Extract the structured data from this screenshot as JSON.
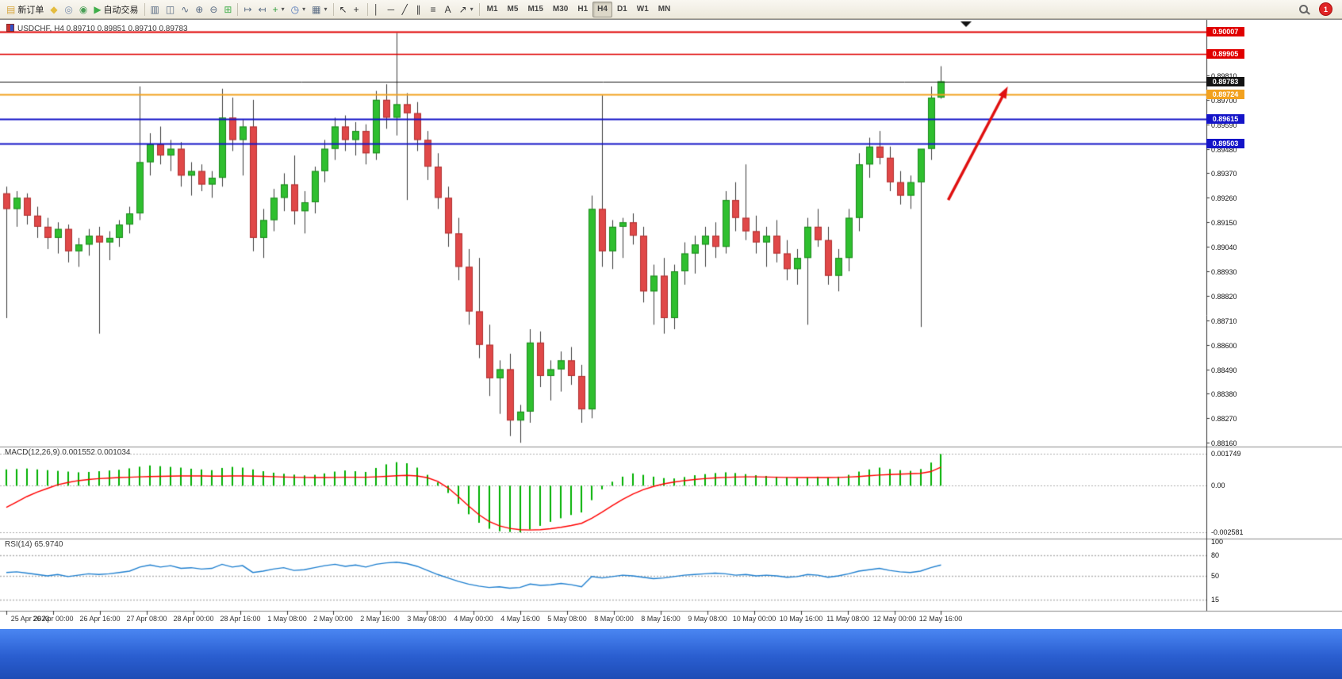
{
  "toolbar": {
    "notification_count": "1",
    "timeframes": [
      "M1",
      "M5",
      "M15",
      "M30",
      "H1",
      "H4",
      "D1",
      "W1",
      "MN"
    ],
    "active_timeframe": "H4",
    "icon_groups": [
      [
        {
          "name": "new-order",
          "glyph": "▤",
          "color": "#d7a73f",
          "label": "新订单"
        },
        {
          "name": "metaeditor",
          "glyph": "◆",
          "color": "#e4bc3e"
        },
        {
          "name": "history-center",
          "glyph": "◎",
          "color": "#7a8fae"
        },
        {
          "name": "global-search",
          "glyph": "◉",
          "color": "#4aa057"
        },
        {
          "name": "auto-trading",
          "glyph": "▶",
          "color": "#3fae4a",
          "label": "自动交易"
        }
      ],
      [
        {
          "name": "bar-chart",
          "glyph": "▥",
          "color": "#5a6c84"
        },
        {
          "name": "candlestick-chart",
          "glyph": "◫",
          "color": "#5a6c84"
        },
        {
          "name": "line-chart",
          "glyph": "∿",
          "color": "#5a6c84"
        },
        {
          "name": "zoom-in",
          "glyph": "⊕",
          "color": "#5a6c84"
        },
        {
          "name": "zoom-out",
          "glyph": "⊖",
          "color": "#5a6c84"
        },
        {
          "name": "tile-windows",
          "glyph": "⊞",
          "color": "#3fae4a"
        }
      ],
      [
        {
          "name": "auto-scroll",
          "glyph": "↦",
          "color": "#5a6c84"
        },
        {
          "name": "chart-shift",
          "glyph": "↤",
          "color": "#5a6c84"
        },
        {
          "name": "indicators",
          "glyph": "+",
          "color": "#2f9e3a",
          "caret": true
        },
        {
          "name": "periods",
          "glyph": "◷",
          "color": "#4a71b8",
          "caret": true
        },
        {
          "name": "templates",
          "glyph": "▦",
          "color": "#5a6c84",
          "caret": true
        }
      ],
      [
        {
          "name": "cursor",
          "glyph": "↖",
          "color": "#333333"
        },
        {
          "name": "crosshair",
          "glyph": "+",
          "color": "#333333"
        }
      ],
      [
        {
          "name": "vertical-line",
          "glyph": "│",
          "color": "#333333"
        },
        {
          "name": "horizontal-line",
          "glyph": "─",
          "color": "#333333"
        },
        {
          "name": "trendline",
          "glyph": "╱",
          "color": "#333333"
        },
        {
          "name": "equidistant-channel",
          "glyph": "∥",
          "color": "#333333"
        },
        {
          "name": "fibonacci",
          "glyph": "≡",
          "color": "#333333"
        },
        {
          "name": "text",
          "glyph": "A",
          "color": "#333333"
        },
        {
          "name": "arrows",
          "glyph": "↗",
          "color": "#333333",
          "caret": true
        }
      ]
    ]
  },
  "chart_data": {
    "type": "candlestick",
    "symbol": "USDCHF",
    "timeframe": "H4",
    "title": "USDCHF, H4 0.89710 0.89851 0.89710 0.89783",
    "ohlc": {
      "open": "0.89710",
      "high": "0.89851",
      "low": "0.89710",
      "close": "0.89783"
    },
    "price_axis": {
      "min": 0.8815,
      "max": 0.90045,
      "tick_labels": [
        "0.89810",
        "0.89700",
        "0.89590",
        "0.89480",
        "0.89370",
        "0.89260",
        "0.89150",
        "0.89040",
        "0.88930",
        "0.88820",
        "0.88710",
        "0.88600",
        "0.88490",
        "0.88380",
        "0.88270",
        "0.88160"
      ]
    },
    "hlines": [
      {
        "price": 0.90007,
        "label": "0.90007",
        "color": "#e00000",
        "width": 2,
        "badge": true,
        "role": "resistance-line"
      },
      {
        "price": 0.89905,
        "label": "0.89905",
        "color": "#e00000",
        "width": 1.5,
        "badge": true,
        "role": "resistance-line"
      },
      {
        "price": 0.89783,
        "label": "0.89783",
        "color": "#141414",
        "width": 1,
        "badge": true,
        "role": "bid-price-line"
      },
      {
        "price": 0.89724,
        "label": "0.89724",
        "color": "#f2a11e",
        "width": 2,
        "badge": true,
        "role": "support-line"
      },
      {
        "price": 0.89615,
        "label": "0.89615",
        "color": "#1414c8",
        "width": 2,
        "badge": true,
        "role": "support-line"
      },
      {
        "price": 0.89503,
        "label": "0.89503",
        "color": "#1414c8",
        "width": 2,
        "badge": true,
        "role": "support-line"
      }
    ],
    "trend_arrow": {
      "from_bar": 91.7,
      "from_price": 0.8925,
      "to_bar": 97.5,
      "to_price": 0.8976,
      "color": "#e01010"
    },
    "candles": [
      [
        0.8928,
        0.8931,
        0.8872,
        0.8921
      ],
      [
        0.8921,
        0.8929,
        0.8913,
        0.8926
      ],
      [
        0.8926,
        0.8928,
        0.8914,
        0.8918
      ],
      [
        0.8918,
        0.8922,
        0.8908,
        0.8913
      ],
      [
        0.8913,
        0.8917,
        0.8903,
        0.8908
      ],
      [
        0.8908,
        0.8915,
        0.8901,
        0.8912
      ],
      [
        0.8912,
        0.8914,
        0.8897,
        0.8902
      ],
      [
        0.8902,
        0.8908,
        0.8895,
        0.8905
      ],
      [
        0.8905,
        0.8912,
        0.89,
        0.8909
      ],
      [
        0.8909,
        0.8913,
        0.8865,
        0.8906
      ],
      [
        0.8906,
        0.8911,
        0.8898,
        0.8908
      ],
      [
        0.8908,
        0.8916,
        0.8904,
        0.8914
      ],
      [
        0.8914,
        0.8922,
        0.891,
        0.8919
      ],
      [
        0.8919,
        0.8976,
        0.8916,
        0.8942
      ],
      [
        0.8942,
        0.8955,
        0.8936,
        0.895
      ],
      [
        0.895,
        0.8958,
        0.8941,
        0.8945
      ],
      [
        0.8945,
        0.8952,
        0.8938,
        0.8948
      ],
      [
        0.8948,
        0.8951,
        0.8931,
        0.8936
      ],
      [
        0.8936,
        0.8942,
        0.8927,
        0.8938
      ],
      [
        0.8938,
        0.8941,
        0.8929,
        0.8932
      ],
      [
        0.8932,
        0.8938,
        0.8926,
        0.8935
      ],
      [
        0.8935,
        0.8975,
        0.8931,
        0.8962
      ],
      [
        0.8962,
        0.8971,
        0.8947,
        0.8952
      ],
      [
        0.8952,
        0.8961,
        0.8936,
        0.8958
      ],
      [
        0.8958,
        0.897,
        0.8902,
        0.8908
      ],
      [
        0.8908,
        0.8921,
        0.8899,
        0.8916
      ],
      [
        0.8916,
        0.893,
        0.8911,
        0.8926
      ],
      [
        0.8926,
        0.8937,
        0.892,
        0.8932
      ],
      [
        0.8932,
        0.8945,
        0.8914,
        0.892
      ],
      [
        0.892,
        0.8929,
        0.891,
        0.8924
      ],
      [
        0.8924,
        0.894,
        0.8919,
        0.8938
      ],
      [
        0.8938,
        0.8952,
        0.8933,
        0.8948
      ],
      [
        0.8948,
        0.8962,
        0.8943,
        0.8958
      ],
      [
        0.8958,
        0.8963,
        0.8947,
        0.8952
      ],
      [
        0.8952,
        0.896,
        0.8945,
        0.8956
      ],
      [
        0.8956,
        0.8959,
        0.8941,
        0.8946
      ],
      [
        0.8946,
        0.8974,
        0.8943,
        0.897
      ],
      [
        0.897,
        0.8977,
        0.8957,
        0.8962
      ],
      [
        0.8962,
        0.9,
        0.8954,
        0.8968
      ],
      [
        0.8968,
        0.8973,
        0.8925,
        0.8964
      ],
      [
        0.8964,
        0.8969,
        0.8947,
        0.8952
      ],
      [
        0.8952,
        0.8956,
        0.8934,
        0.894
      ],
      [
        0.894,
        0.8946,
        0.8921,
        0.8926
      ],
      [
        0.8926,
        0.8931,
        0.8904,
        0.891
      ],
      [
        0.891,
        0.8917,
        0.8889,
        0.8895
      ],
      [
        0.8895,
        0.8903,
        0.8869,
        0.8875
      ],
      [
        0.8875,
        0.8899,
        0.8854,
        0.886
      ],
      [
        0.886,
        0.8869,
        0.8837,
        0.8845
      ],
      [
        0.8845,
        0.8853,
        0.8829,
        0.8849
      ],
      [
        0.8849,
        0.8856,
        0.8819,
        0.8826
      ],
      [
        0.8826,
        0.8833,
        0.8816,
        0.883
      ],
      [
        0.883,
        0.8867,
        0.8825,
        0.8861
      ],
      [
        0.8861,
        0.8866,
        0.8841,
        0.8846
      ],
      [
        0.8846,
        0.8853,
        0.8835,
        0.8849
      ],
      [
        0.8849,
        0.8857,
        0.8839,
        0.8853
      ],
      [
        0.8853,
        0.8859,
        0.8842,
        0.8846
      ],
      [
        0.8846,
        0.8851,
        0.8825,
        0.8831
      ],
      [
        0.8831,
        0.8927,
        0.8827,
        0.8921
      ],
      [
        0.8921,
        0.8972,
        0.8895,
        0.8902
      ],
      [
        0.8902,
        0.8916,
        0.8894,
        0.8913
      ],
      [
        0.8913,
        0.8917,
        0.8899,
        0.8915
      ],
      [
        0.8915,
        0.8919,
        0.8905,
        0.8909
      ],
      [
        0.8909,
        0.8913,
        0.8879,
        0.8884
      ],
      [
        0.8884,
        0.8896,
        0.8869,
        0.8891
      ],
      [
        0.8891,
        0.8899,
        0.8865,
        0.8872
      ],
      [
        0.8872,
        0.8896,
        0.8867,
        0.8893
      ],
      [
        0.8893,
        0.8906,
        0.8887,
        0.8901
      ],
      [
        0.8901,
        0.8909,
        0.8892,
        0.8905
      ],
      [
        0.8905,
        0.8913,
        0.8895,
        0.8909
      ],
      [
        0.8909,
        0.8915,
        0.8899,
        0.8904
      ],
      [
        0.8904,
        0.8929,
        0.8901,
        0.8925
      ],
      [
        0.8925,
        0.8933,
        0.8911,
        0.8917
      ],
      [
        0.8917,
        0.8941,
        0.8907,
        0.8911
      ],
      [
        0.8911,
        0.8918,
        0.8901,
        0.8906
      ],
      [
        0.8906,
        0.8913,
        0.8895,
        0.8909
      ],
      [
        0.8909,
        0.8916,
        0.8897,
        0.8901
      ],
      [
        0.8901,
        0.8907,
        0.8889,
        0.8894
      ],
      [
        0.8894,
        0.8903,
        0.8887,
        0.8899
      ],
      [
        0.8899,
        0.8917,
        0.8869,
        0.8913
      ],
      [
        0.8913,
        0.8921,
        0.8904,
        0.8907
      ],
      [
        0.8907,
        0.8913,
        0.8887,
        0.8891
      ],
      [
        0.8891,
        0.8903,
        0.8884,
        0.8899
      ],
      [
        0.8899,
        0.8921,
        0.8893,
        0.8917
      ],
      [
        0.8917,
        0.8946,
        0.8911,
        0.8941
      ],
      [
        0.8941,
        0.8953,
        0.8935,
        0.8949
      ],
      [
        0.8949,
        0.8956,
        0.8941,
        0.8944
      ],
      [
        0.8944,
        0.8949,
        0.8929,
        0.8933
      ],
      [
        0.8933,
        0.8938,
        0.8923,
        0.8927
      ],
      [
        0.8927,
        0.8936,
        0.8921,
        0.8933
      ],
      [
        0.8933,
        0.8937,
        0.8868,
        0.8948
      ],
      [
        0.8948,
        0.8976,
        0.8943,
        0.8971
      ],
      [
        0.8971,
        0.89851,
        0.89705,
        0.89783
      ]
    ],
    "macd": {
      "label": "MACD(12,26,9) 0.001552 0.001034",
      "params": "12,26,9",
      "main_value": "0.001552",
      "signal_value": "0.001034",
      "scale": [
        {
          "v": 0.001749,
          "t": "0.001749"
        },
        {
          "v": 0,
          "t": "0.00"
        },
        {
          "v": -0.002581,
          "t": "-0.002581"
        }
      ],
      "histogram": [
        0.0009,
        0.00092,
        0.00095,
        0.0009,
        0.00086,
        0.00082,
        0.00078,
        0.00074,
        0.00076,
        0.0008,
        0.00084,
        0.00088,
        0.00096,
        0.00105,
        0.00112,
        0.00108,
        0.00104,
        0.001,
        0.00094,
        0.0009,
        0.00086,
        0.00098,
        0.00104,
        0.001,
        0.0009,
        0.0008,
        0.00072,
        0.00066,
        0.00061,
        0.00057,
        0.0006,
        0.00068,
        0.00078,
        0.00084,
        0.0008,
        0.00076,
        0.00098,
        0.00118,
        0.0013,
        0.00124,
        0.001,
        0.0006,
        0.00018,
        -0.0004,
        -0.001,
        -0.00158,
        -0.00205,
        -0.00238,
        -0.00252,
        -0.00256,
        -0.00258,
        -0.00242,
        -0.00222,
        -0.002,
        -0.0018,
        -0.00162,
        -0.00148,
        -0.0008,
        -0.0002,
        0.00022,
        0.0005,
        0.00068,
        0.0006,
        0.0005,
        0.00042,
        0.0004,
        0.00048,
        0.00058,
        0.00064,
        0.0007,
        0.00074,
        0.0007,
        0.00064,
        0.00058,
        0.00054,
        0.0005,
        0.00046,
        0.00042,
        0.00046,
        0.0005,
        0.00046,
        0.0005,
        0.0006,
        0.00078,
        0.0009,
        0.001,
        0.00092,
        0.00086,
        0.00082,
        0.00092,
        0.00128,
        0.00175
      ],
      "signal": [
        -0.0012,
        -0.0009,
        -0.0006,
        -0.00035,
        -0.00015,
        5e-05,
        0.00018,
        0.00028,
        0.00034,
        0.00039,
        0.00042,
        0.00045,
        0.00047,
        0.00049,
        0.00051,
        0.00052,
        0.00053,
        0.00054,
        0.00054,
        0.00054,
        0.00053,
        0.00053,
        0.00054,
        0.00054,
        0.00053,
        0.00052,
        0.0005,
        0.00048,
        0.00047,
        0.00046,
        0.00045,
        0.00045,
        0.00046,
        0.00047,
        0.00047,
        0.00047,
        0.00049,
        0.00052,
        0.00055,
        0.00057,
        0.00054,
        0.00044,
        0.00024,
        -0.00012,
        -0.0006,
        -0.00112,
        -0.0016,
        -0.00198,
        -0.00222,
        -0.00236,
        -0.00243,
        -0.00245,
        -0.00243,
        -0.00238,
        -0.0023,
        -0.0022,
        -0.00208,
        -0.0018,
        -0.00146,
        -0.0011,
        -0.00076,
        -0.00046,
        -0.00022,
        -4e-05,
        0.0001,
        0.0002,
        0.00028,
        0.00034,
        0.00039,
        0.00043,
        0.00046,
        0.00048,
        0.00049,
        0.00049,
        0.00048,
        0.00047,
        0.00046,
        0.00045,
        0.00045,
        0.00045,
        0.00045,
        0.00046,
        0.00048,
        0.00051,
        0.00055,
        0.00059,
        0.00062,
        0.00064,
        0.00066,
        0.00068,
        0.00078,
        0.00103
      ]
    },
    "rsi": {
      "label": "RSI(14) 65.9740",
      "period": "14",
      "value": "65.9740",
      "levels": [
        80,
        50,
        15
      ],
      "scale": [
        {
          "v": 100,
          "t": "100"
        },
        {
          "v": 80,
          "t": "80"
        },
        {
          "v": 50,
          "t": "50"
        },
        {
          "v": 15,
          "t": "15"
        }
      ],
      "values": [
        55,
        56,
        54,
        52,
        50,
        52,
        49,
        51,
        53,
        52,
        53,
        55,
        57,
        63,
        66,
        63,
        65,
        61,
        62,
        60,
        61,
        67,
        63,
        65,
        55,
        57,
        60,
        62,
        58,
        59,
        62,
        65,
        67,
        64,
        66,
        63,
        67,
        69,
        70,
        68,
        64,
        58,
        52,
        47,
        42,
        38,
        35,
        33,
        34,
        32,
        33,
        38,
        36,
        37,
        39,
        37,
        34,
        49,
        47,
        49,
        51,
        50,
        48,
        46,
        47,
        49,
        51,
        52,
        53,
        54,
        53,
        51,
        52,
        50,
        51,
        50,
        48,
        49,
        52,
        51,
        48,
        50,
        53,
        57,
        59,
        61,
        58,
        56,
        55,
        57,
        62,
        66
      ]
    },
    "time_labels": [
      "25 Apr 2023",
      "26 Apr 00:00",
      "26 Apr 16:00",
      "27 Apr 08:00",
      "28 Apr 00:00",
      "28 Apr 16:00",
      "1 May 08:00",
      "2 May 00:00",
      "2 May 16:00",
      "3 May 08:00",
      "4 May 00:00",
      "4 May 16:00",
      "5 May 08:00",
      "8 May 00:00",
      "8 May 16:00",
      "9 May 08:00",
      "10 May 00:00",
      "10 May 16:00",
      "11 May 08:00",
      "12 May 00:00",
      "12 May 16:00"
    ],
    "colors": {
      "up": "#2fbf2f",
      "up_stroke": "#1d8a1d",
      "down": "#e04848",
      "down_stroke": "#b03232",
      "wick": "#3a3a3a",
      "macd_hist": "#00b000",
      "macd_signal": "#ff0000",
      "rsi_line": "#2080d0",
      "background": "#ffffff"
    }
  }
}
